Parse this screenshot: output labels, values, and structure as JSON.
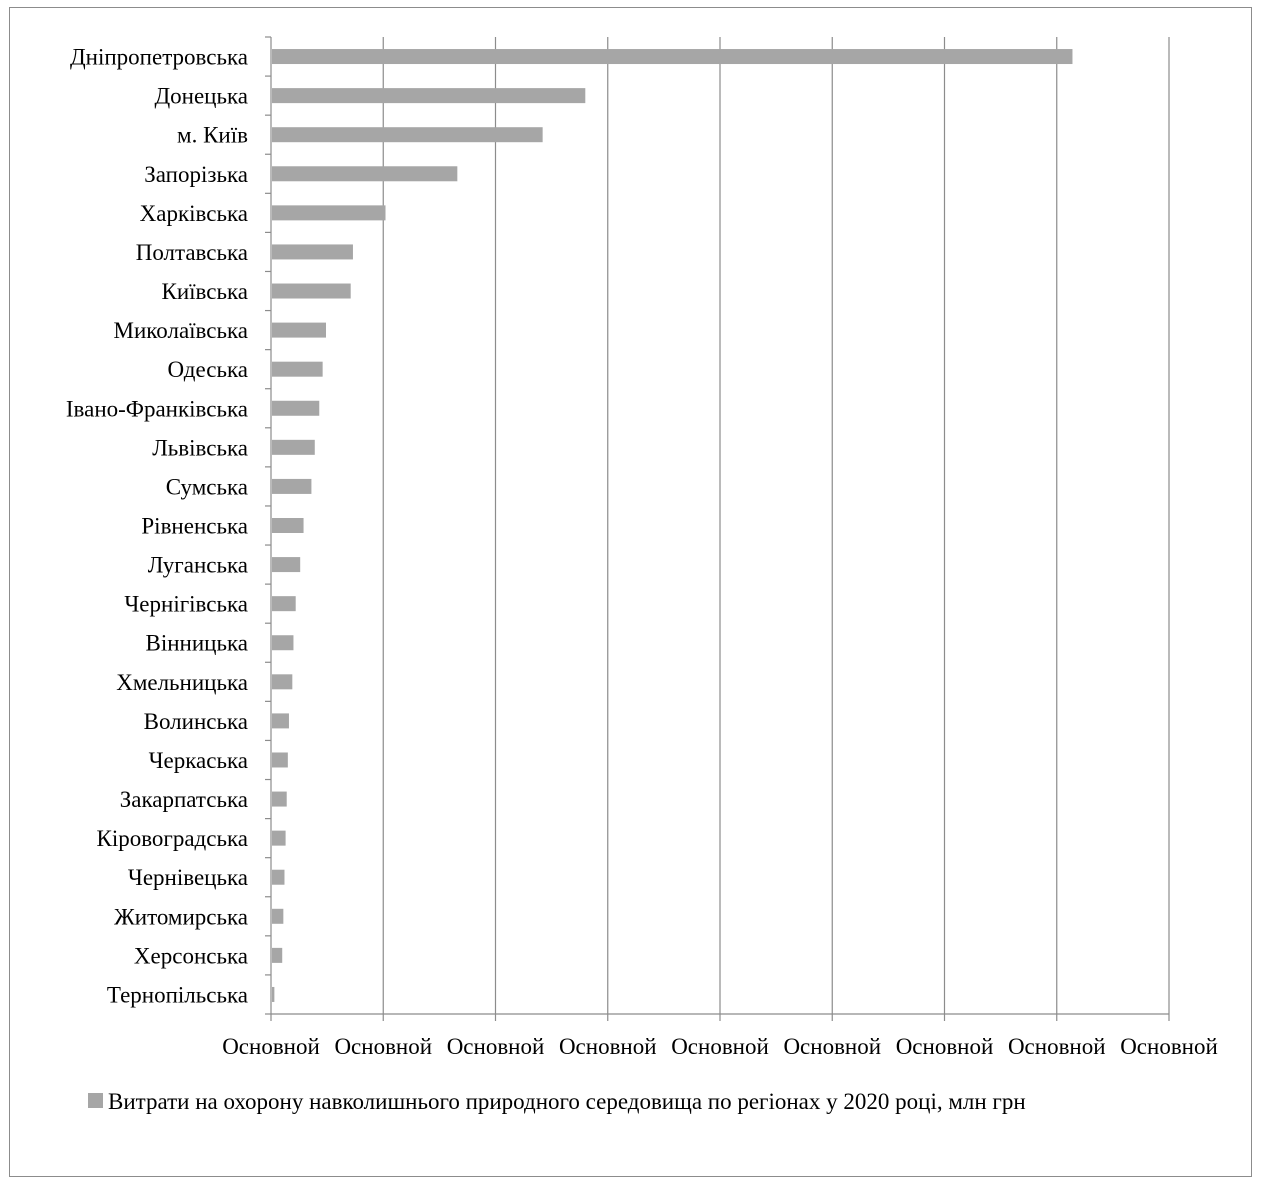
{
  "chart_data": {
    "type": "bar",
    "orientation": "horizontal",
    "categories": [
      "Дніпропетровська",
      "Донецька",
      "м. Київ",
      "Запорізька",
      "Харківська",
      "Полтавська",
      "Київська",
      "Миколаївська",
      "Одеська",
      "Івано-Франківська",
      "Львівська",
      "Сумська",
      "Рівненська",
      "Луганська",
      "Чернігівська",
      "Вінницька",
      "Хмельницька",
      "Волинська",
      "Черкаська",
      "Закарпатська",
      "Кіровоградська",
      "Чернівецька",
      "Житомирська",
      "Херсонська",
      "Тернопільська"
    ],
    "series": [
      {
        "name": "Витрати на охорону навколишнього природного середовища по регіонах у 2020 році, млн грн",
        "values": [
          7.14,
          2.8,
          2.42,
          1.66,
          1.02,
          0.73,
          0.71,
          0.49,
          0.46,
          0.43,
          0.39,
          0.36,
          0.29,
          0.26,
          0.22,
          0.2,
          0.19,
          0.16,
          0.15,
          0.14,
          0.13,
          0.12,
          0.11,
          0.1,
          0.03
        ],
        "color": "#a6a6a6"
      }
    ],
    "xlim": [
      0,
      8
    ],
    "xtick_labels": [
      "Основной",
      "Основной",
      "Основной",
      "Основной",
      "Основной",
      "Основной",
      "Основной",
      "Основной",
      "Основной"
    ],
    "grid": "vertical",
    "gridline_color": "#8c8c8c",
    "legend_position": "bottom-left",
    "title": "",
    "xlabel": "",
    "ylabel": ""
  }
}
